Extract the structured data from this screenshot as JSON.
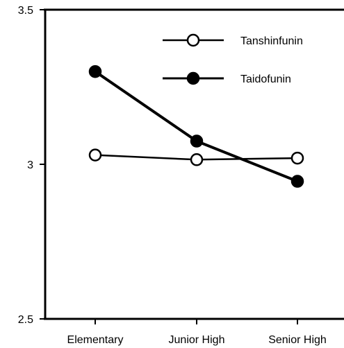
{
  "chart_data": {
    "type": "line",
    "title": "",
    "xlabel": "",
    "ylabel": "",
    "categories": [
      "Elementary",
      "Junior High",
      "Senior High"
    ],
    "ylim": [
      2.5,
      3.5
    ],
    "yticks": [
      "2.5",
      "3",
      "3.5"
    ],
    "grid": false,
    "legend_position": "top-right",
    "series": [
      {
        "name": "Tanshinfunin",
        "marker": "open-circle",
        "line_width": "thin",
        "values": [
          3.03,
          3.015,
          3.02
        ],
        "color": "#000000"
      },
      {
        "name": "Taidofunin",
        "marker": "filled-circle",
        "line_width": "thick",
        "values": [
          3.3,
          3.075,
          2.945
        ],
        "color": "#000000"
      }
    ]
  }
}
